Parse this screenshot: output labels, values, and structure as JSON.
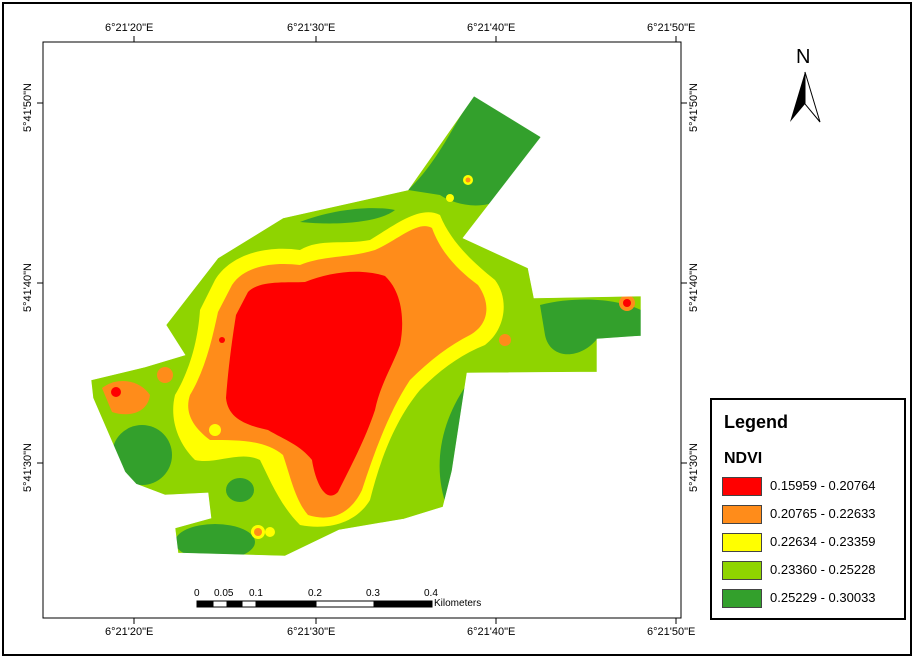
{
  "map": {
    "top_ticks": [
      "6°21'20\"E",
      "6°21'30\"E",
      "6°21'40\"E",
      "6°21'50\"E"
    ],
    "bottom_ticks": [
      "6°21'20\"E",
      "6°21'30\"E",
      "6°21'40\"E",
      "6°21'50\"E"
    ],
    "left_ticks": [
      "5°41'50\"N",
      "5°41'40\"N",
      "5°41'30\"N"
    ],
    "right_ticks": [
      "5°41'50\"N",
      "5°41'40\"N",
      "5°41'30\"N"
    ]
  },
  "north_arrow": {
    "label": "N",
    "icon": "north-arrow-icon"
  },
  "legend": {
    "title": "Legend",
    "subtitle": "NDVI",
    "classes": [
      {
        "range": "0.15959 - 0.20764",
        "color": "#ff0000"
      },
      {
        "range": "0.20765 - 0.22633",
        "color": "#ff8c1a"
      },
      {
        "range": "0.22634 - 0.23359",
        "color": "#ffff00"
      },
      {
        "range": "0.23360 - 0.25228",
        "color": "#8fd400"
      },
      {
        "range": "0.25229 - 0.30033",
        "color": "#33a02c"
      }
    ]
  },
  "scale_bar": {
    "ticks": [
      "0",
      "0.05",
      "0.1",
      "0.2",
      "0.3",
      "0.4"
    ],
    "unit": "Kilometers"
  }
}
